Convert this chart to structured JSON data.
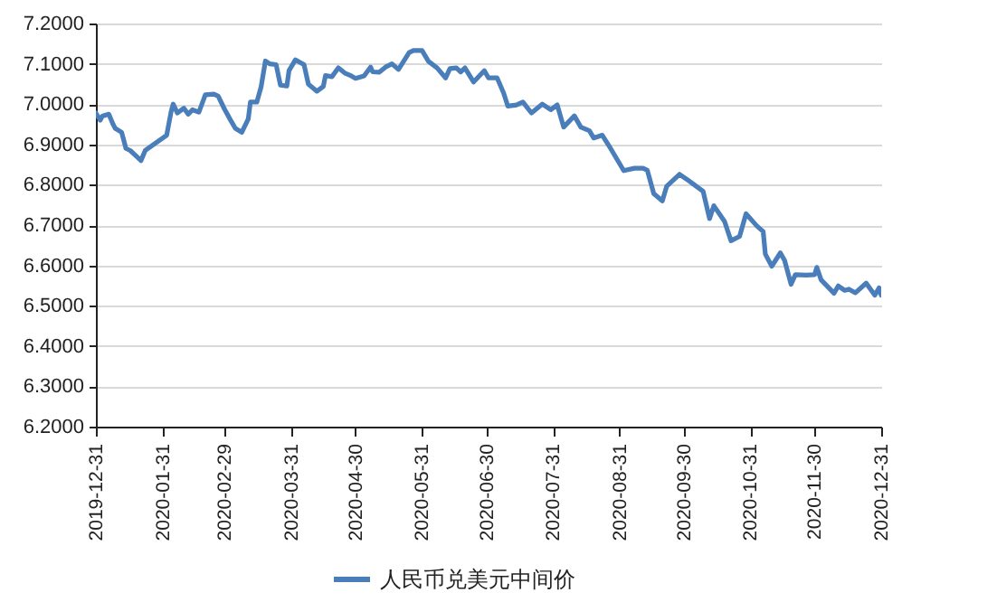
{
  "chart_data": {
    "type": "line",
    "x": [
      "2019-12-31",
      "2020-01-02",
      "2020-01-03",
      "2020-01-06",
      "2020-01-08",
      "2020-01-09",
      "2020-01-12",
      "2020-01-14",
      "2020-01-16",
      "2020-01-19",
      "2020-01-21",
      "2020-01-23",
      "2020-02-02",
      "2020-02-04",
      "2020-02-05",
      "2020-02-07",
      "2020-02-10",
      "2020-02-12",
      "2020-02-14",
      "2020-02-17",
      "2020-02-20",
      "2020-02-24",
      "2020-02-26",
      "2020-02-29",
      "2020-03-03",
      "2020-03-05",
      "2020-03-08",
      "2020-03-11",
      "2020-03-12",
      "2020-03-15",
      "2020-03-17",
      "2020-03-19",
      "2020-03-21",
      "2020-03-24",
      "2020-03-26",
      "2020-03-29",
      "2020-03-30",
      "2020-04-02",
      "2020-04-06",
      "2020-04-08",
      "2020-04-12",
      "2020-04-15",
      "2020-04-16",
      "2020-04-19",
      "2020-04-22",
      "2020-04-25",
      "2020-04-28",
      "2020-04-30",
      "2020-05-04",
      "2020-05-07",
      "2020-05-08",
      "2020-05-11",
      "2020-05-14",
      "2020-05-17",
      "2020-05-20",
      "2020-05-25",
      "2020-05-27",
      "2020-05-31",
      "2020-06-03",
      "2020-06-07",
      "2020-06-11",
      "2020-06-13",
      "2020-06-16",
      "2020-06-18",
      "2020-06-20",
      "2020-06-24",
      "2020-06-29",
      "2020-07-01",
      "2020-07-05",
      "2020-07-08",
      "2020-07-10",
      "2020-07-14",
      "2020-07-17",
      "2020-07-21",
      "2020-07-26",
      "2020-07-30",
      "2020-08-02",
      "2020-08-05",
      "2020-08-10",
      "2020-08-13",
      "2020-08-17",
      "2020-08-19",
      "2020-08-23",
      "2020-08-27",
      "2020-09-02",
      "2020-09-07",
      "2020-09-11",
      "2020-09-13",
      "2020-09-16",
      "2020-09-20",
      "2020-09-22",
      "2020-09-28",
      "2020-10-02",
      "2020-10-09",
      "2020-10-12",
      "2020-10-14",
      "2020-10-19",
      "2020-10-22",
      "2020-10-26",
      "2020-10-29",
      "2020-11-03",
      "2020-11-06",
      "2020-11-07",
      "2020-11-10",
      "2020-11-14",
      "2020-11-16",
      "2020-11-19",
      "2020-11-21",
      "2020-11-26",
      "2020-11-30",
      "2020-12-01",
      "2020-12-03",
      "2020-12-09",
      "2020-12-11",
      "2020-12-14",
      "2020-12-16",
      "2020-12-19",
      "2020-12-24",
      "2020-12-28",
      "2020-12-30",
      "2020-12-31"
    ],
    "series": [
      {
        "name": "人民币兑美元中间价",
        "color": "#4a7ebb",
        "values": [
          6.978,
          6.96,
          6.97,
          6.975,
          6.95,
          6.94,
          6.93,
          6.89,
          6.885,
          6.87,
          6.86,
          6.885,
          6.923,
          6.98,
          7.0,
          6.978,
          6.99,
          6.975,
          6.986,
          6.98,
          7.023,
          7.025,
          7.02,
          6.987,
          6.958,
          6.94,
          6.93,
          6.963,
          7.005,
          7.005,
          7.043,
          7.107,
          7.1,
          7.098,
          7.047,
          7.045,
          7.083,
          7.11,
          7.098,
          7.05,
          7.032,
          7.044,
          7.071,
          7.068,
          7.09,
          7.077,
          7.07,
          7.064,
          7.07,
          7.092,
          7.08,
          7.079,
          7.092,
          7.1,
          7.086,
          7.128,
          7.133,
          7.133,
          7.106,
          7.09,
          7.065,
          7.088,
          7.09,
          7.08,
          7.09,
          7.055,
          7.083,
          7.065,
          7.065,
          7.028,
          6.995,
          6.998,
          7.005,
          6.978,
          7.0,
          6.986,
          6.998,
          6.943,
          6.971,
          6.943,
          6.934,
          6.916,
          6.923,
          6.889,
          6.835,
          6.841,
          6.841,
          6.836,
          6.778,
          6.76,
          6.796,
          6.826,
          6.811,
          6.784,
          6.716,
          6.748,
          6.709,
          6.661,
          6.672,
          6.728,
          6.698,
          6.684,
          6.628,
          6.598,
          6.631,
          6.612,
          6.553,
          6.577,
          6.576,
          6.577,
          6.595,
          6.564,
          6.531,
          6.549,
          6.538,
          6.541,
          6.532,
          6.556,
          6.526,
          6.544,
          6.526
        ]
      }
    ],
    "xlim": [
      "2019-12-31",
      "2020-12-31"
    ],
    "xticks": [
      "2019-12-31",
      "2020-01-31",
      "2020-02-29",
      "2020-03-31",
      "2020-04-30",
      "2020-05-31",
      "2020-06-30",
      "2020-07-31",
      "2020-08-31",
      "2020-09-30",
      "2020-10-31",
      "2020-11-30",
      "2020-12-31"
    ],
    "ylim": [
      6.2,
      7.2
    ],
    "yticks": [
      {
        "value": 6.2,
        "label": "6.2000"
      },
      {
        "value": 6.3,
        "label": "6.3000"
      },
      {
        "value": 6.4,
        "label": "6.4000"
      },
      {
        "value": 6.5,
        "label": "6.5000"
      },
      {
        "value": 6.6,
        "label": "6.6000"
      },
      {
        "value": 6.7,
        "label": "6.7000"
      },
      {
        "value": 6.8,
        "label": "6.8000"
      },
      {
        "value": 6.9,
        "label": "6.9000"
      },
      {
        "value": 7.0,
        "label": "7.0000"
      },
      {
        "value": 7.1,
        "label": "7.1000"
      },
      {
        "value": 7.2,
        "label": "7.2000"
      }
    ],
    "grid": "y",
    "legend": "bottom",
    "line_style": "solid",
    "marker": "none"
  }
}
